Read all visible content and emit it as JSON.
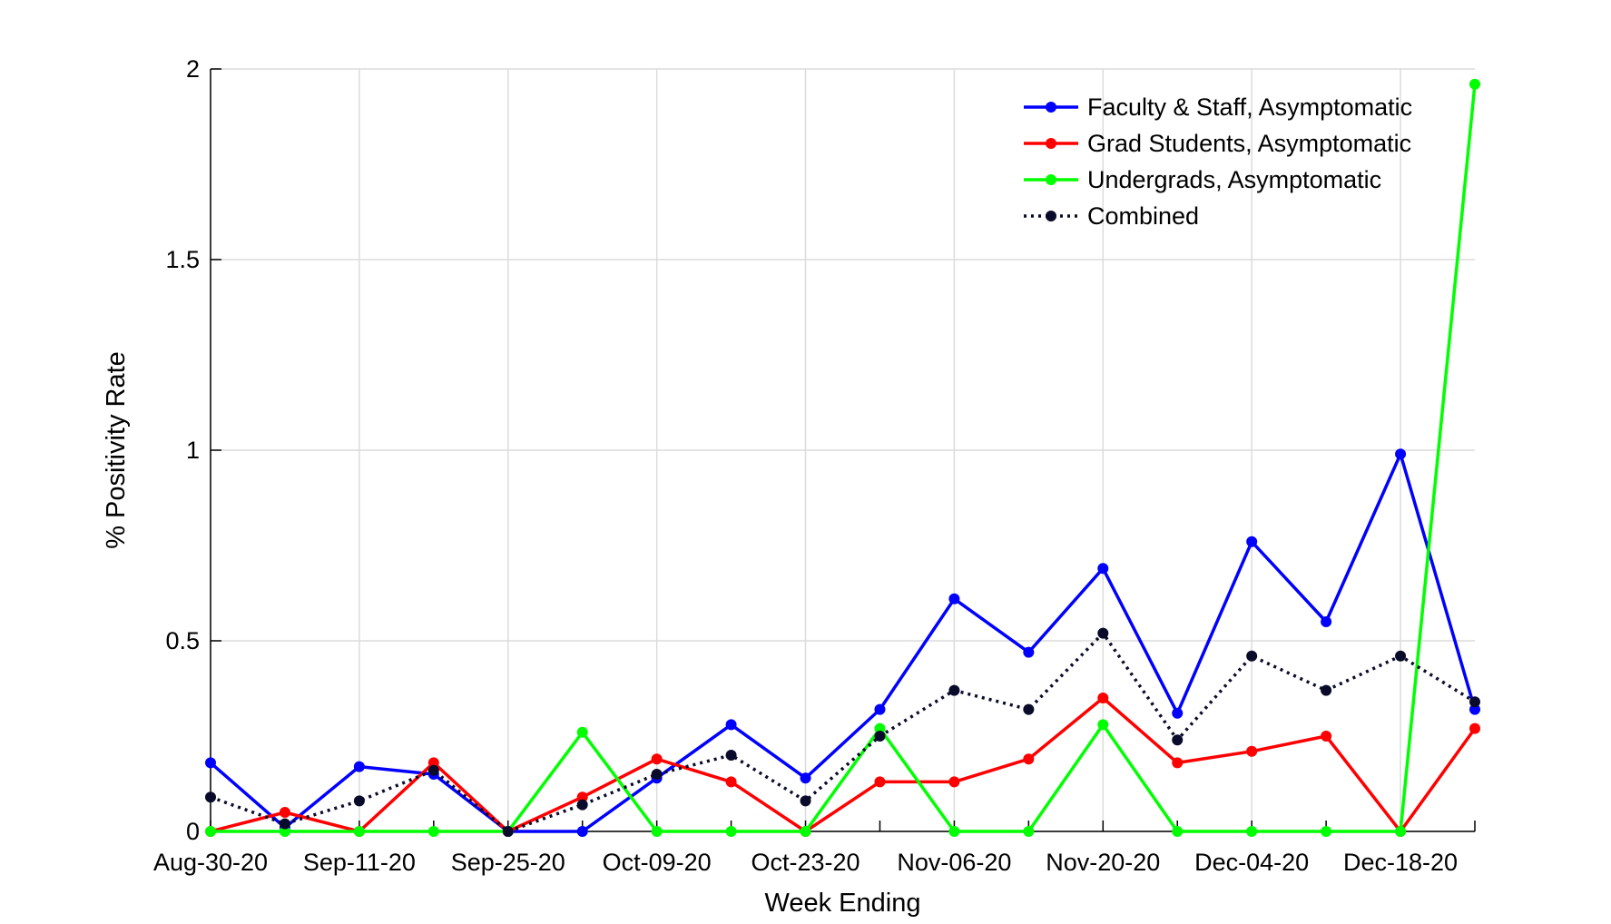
{
  "chart_data": {
    "type": "line",
    "title": "",
    "xlabel": "Week Ending",
    "ylabel": "% Positivity Rate",
    "ylim": [
      0,
      2
    ],
    "yticks": [
      "0",
      "0.5",
      "1",
      "1.5",
      "2"
    ],
    "ytick_values": [
      0,
      0.5,
      1,
      1.5,
      2
    ],
    "x_tick_labels": [
      "Aug-30-20",
      "Sep-11-20",
      "Sep-25-20",
      "Oct-09-20",
      "Oct-23-20",
      "Nov-06-20",
      "Nov-20-20",
      "Dec-04-20",
      "Dec-18-20"
    ],
    "x_tick_positions": [
      0,
      2,
      4,
      6,
      8,
      10,
      12,
      14,
      16
    ],
    "x_count": 18,
    "grid": true,
    "legend_position": "top-right",
    "series": [
      {
        "name": "Faculty & Staff, Asymptomatic",
        "color": "#0000ff",
        "style": "solid",
        "values": [
          0.18,
          0.01,
          0.17,
          0.15,
          0.0,
          0.0,
          0.14,
          0.28,
          0.14,
          0.32,
          0.61,
          0.47,
          0.69,
          0.31,
          0.76,
          0.55,
          0.99,
          0.32
        ]
      },
      {
        "name": "Grad Students, Asymptomatic",
        "color": "#ff0000",
        "style": "solid",
        "values": [
          0.0,
          0.05,
          0.0,
          0.18,
          0.0,
          0.09,
          0.19,
          0.13,
          0.0,
          0.13,
          0.13,
          0.19,
          0.35,
          0.18,
          0.21,
          0.25,
          0.0,
          0.27
        ]
      },
      {
        "name": "Undergrads, Asymptomatic",
        "color": "#00ff00",
        "style": "solid",
        "values": [
          0.0,
          0.0,
          0.0,
          0.0,
          0.0,
          0.26,
          0.0,
          0.0,
          0.0,
          0.27,
          0.0,
          0.0,
          0.28,
          0.0,
          0.0,
          0.0,
          0.0,
          1.96
        ]
      },
      {
        "name": "Combined",
        "color": "#0a0a2a",
        "style": "dotted",
        "values": [
          0.09,
          0.02,
          0.08,
          0.16,
          0.0,
          0.07,
          0.15,
          0.2,
          0.08,
          0.25,
          0.37,
          0.32,
          0.52,
          0.24,
          0.46,
          0.37,
          0.46,
          0.34
        ]
      }
    ]
  }
}
